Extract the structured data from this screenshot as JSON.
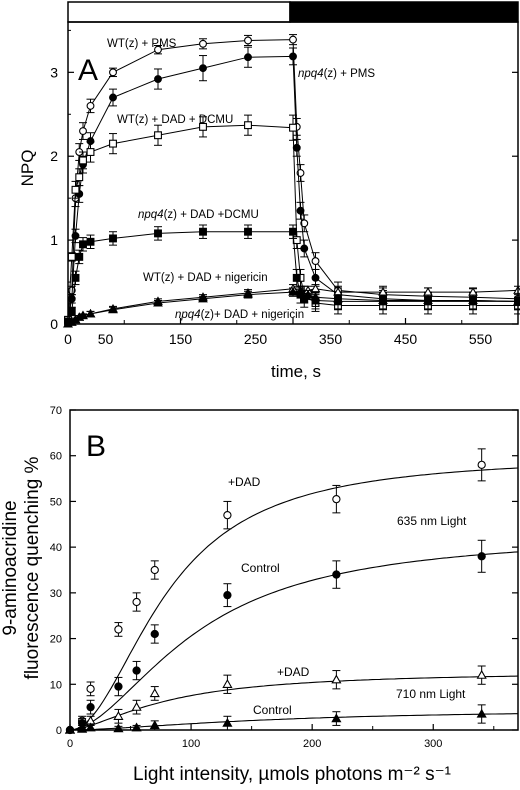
{
  "chart_data": [
    {
      "panel_label": "A",
      "type": "line",
      "xlabel": "time, s",
      "ylabel": "NPQ",
      "xlim": [
        0,
        600
      ],
      "ylim": [
        0,
        3.6
      ],
      "xticks": [
        0,
        150,
        300,
        450
      ],
      "xticks_minor": [
        75,
        225,
        375,
        525
      ],
      "xtick_labels": [
        "0",
        "50",
        "150",
        "250",
        "350",
        "450",
        "550"
      ],
      "xtick_label_values": [
        0,
        50,
        150,
        250,
        350,
        450,
        550
      ],
      "yticks": [
        0,
        1,
        2,
        3
      ],
      "light_bar": {
        "light_until": 300,
        "dark_from": 300
      },
      "series": [
        {
          "name": "WT(z) + PMS",
          "marker": "circle-open",
          "x": [
            0,
            5,
            10,
            15,
            20,
            30,
            60,
            120,
            180,
            240,
            300,
            305,
            310,
            315,
            330,
            360,
            420,
            480,
            540,
            600
          ],
          "y": [
            0.05,
            0.4,
            1.5,
            2.05,
            2.3,
            2.6,
            3.0,
            3.27,
            3.34,
            3.38,
            3.39,
            2.35,
            1.8,
            1.2,
            0.75,
            0.4,
            0.35,
            0.33,
            0.32,
            0.3
          ],
          "err": [
            0.02,
            0.05,
            0.1,
            0.1,
            0.1,
            0.08,
            0.05,
            0.05,
            0.06,
            0.06,
            0.06,
            0.1,
            0.1,
            0.1,
            0.1,
            0.1,
            0.1,
            0.1,
            0.1,
            0.1
          ]
        },
        {
          "name": "npq4(z) + PMS",
          "marker": "circle-filled",
          "x": [
            0,
            5,
            10,
            15,
            20,
            30,
            60,
            120,
            180,
            240,
            300,
            305,
            310,
            315,
            330,
            360,
            420,
            480,
            540,
            600
          ],
          "y": [
            0.05,
            0.3,
            1.05,
            1.55,
            1.9,
            2.18,
            2.7,
            2.92,
            3.05,
            3.18,
            3.19,
            2.1,
            1.35,
            0.9,
            0.55,
            0.35,
            0.3,
            0.28,
            0.28,
            0.27
          ],
          "err": [
            0.02,
            0.05,
            0.08,
            0.1,
            0.1,
            0.1,
            0.1,
            0.12,
            0.15,
            0.12,
            0.1,
            0.1,
            0.1,
            0.1,
            0.1,
            0.1,
            0.1,
            0.1,
            0.1,
            0.1
          ]
        },
        {
          "name": "WT(z) + DAD + DCMU",
          "marker": "square-open",
          "x": [
            0,
            5,
            10,
            15,
            20,
            30,
            60,
            120,
            180,
            240,
            300,
            305,
            310,
            315,
            330,
            360,
            420,
            480,
            540,
            600
          ],
          "y": [
            0.05,
            0.8,
            1.6,
            1.75,
            1.95,
            2.05,
            2.15,
            2.25,
            2.35,
            2.37,
            2.34,
            1.0,
            0.55,
            0.35,
            0.25,
            0.22,
            0.22,
            0.22,
            0.22,
            0.22
          ],
          "err": [
            0.02,
            0.05,
            0.1,
            0.1,
            0.1,
            0.12,
            0.12,
            0.12,
            0.12,
            0.12,
            0.15,
            0.1,
            0.1,
            0.1,
            0.1,
            0.1,
            0.1,
            0.1,
            0.1,
            0.1
          ]
        },
        {
          "name": "npq4(z) + DAD +DCMU",
          "marker": "square-filled",
          "x": [
            0,
            5,
            10,
            15,
            20,
            30,
            60,
            120,
            180,
            240,
            300,
            305,
            310,
            315,
            330,
            360,
            420,
            480,
            540,
            600
          ],
          "y": [
            0.03,
            0.15,
            0.55,
            0.8,
            0.95,
            0.98,
            1.02,
            1.08,
            1.1,
            1.1,
            1.1,
            0.55,
            0.35,
            0.3,
            0.28,
            0.27,
            0.27,
            0.27,
            0.27,
            0.27
          ],
          "err": [
            0.02,
            0.05,
            0.08,
            0.08,
            0.08,
            0.08,
            0.08,
            0.08,
            0.08,
            0.08,
            0.08,
            0.1,
            0.1,
            0.1,
            0.1,
            0.1,
            0.1,
            0.1,
            0.1,
            0.1
          ]
        },
        {
          "name": "WT(z) + DAD + nigericin",
          "marker": "triangle-open",
          "x": [
            0,
            5,
            10,
            15,
            20,
            30,
            60,
            120,
            180,
            240,
            300,
            310,
            320,
            330,
            360,
            420,
            480,
            540,
            600
          ],
          "y": [
            0.0,
            0.02,
            0.05,
            0.08,
            0.1,
            0.12,
            0.18,
            0.27,
            0.32,
            0.37,
            0.42,
            0.4,
            0.4,
            0.42,
            0.38,
            0.38,
            0.38,
            0.38,
            0.4
          ],
          "err": [
            0.01,
            0.02,
            0.02,
            0.02,
            0.02,
            0.03,
            0.03,
            0.03,
            0.03,
            0.04,
            0.05,
            0.05,
            0.05,
            0.05,
            0.05,
            0.05,
            0.05,
            0.05,
            0.05
          ]
        },
        {
          "name": "npq4(z)+ DAD + nigericin",
          "marker": "triangle-filled",
          "x": [
            0,
            5,
            10,
            15,
            20,
            30,
            60,
            120,
            180,
            240,
            300,
            310,
            320,
            330,
            360,
            420,
            480,
            540,
            600
          ],
          "y": [
            0.0,
            0.02,
            0.05,
            0.08,
            0.1,
            0.12,
            0.17,
            0.25,
            0.3,
            0.35,
            0.38,
            0.38,
            0.35,
            0.32,
            0.3,
            0.28,
            0.28,
            0.28,
            0.27
          ],
          "err": [
            0.01,
            0.02,
            0.02,
            0.02,
            0.02,
            0.03,
            0.03,
            0.03,
            0.03,
            0.04,
            0.05,
            0.05,
            0.05,
            0.05,
            0.05,
            0.05,
            0.05,
            0.05,
            0.05
          ]
        }
      ],
      "annotations": [
        {
          "parts": [
            "WT(z) + PMS"
          ],
          "italic": [
            false
          ]
        },
        {
          "parts": [
            "npq4",
            "(z) + PMS"
          ],
          "italic": [
            true,
            false
          ]
        },
        {
          "parts": [
            "WT(z) + DAD + DCMU"
          ],
          "italic": [
            false
          ]
        },
        {
          "parts": [
            "npq4",
            "(z) + DAD +DCMU"
          ],
          "italic": [
            true,
            false
          ]
        },
        {
          "parts": [
            "WT(z) + DAD + nigericin"
          ],
          "italic": [
            false
          ]
        },
        {
          "parts": [
            "npq4",
            "(z)+ DAD + nigericin"
          ],
          "italic": [
            true,
            false
          ]
        }
      ]
    },
    {
      "panel_label": "B",
      "type": "scatter",
      "xlabel": "Light intensity, µmols photons m⁻² s⁻¹",
      "ylabel_line1": "9-aminoacridine",
      "ylabel_line2": "fluorescence quenching %",
      "xlim": [
        0,
        370
      ],
      "ylim": [
        0,
        70
      ],
      "xticks": [
        0,
        100,
        200,
        300
      ],
      "xticks_minor": [
        50,
        150,
        250,
        350
      ],
      "yticks": [
        0,
        10,
        20,
        30,
        40,
        50,
        60,
        70
      ],
      "series": [
        {
          "name": "+DAD",
          "group": "635 nm Light",
          "marker": "circle-open",
          "x": [
            0,
            10,
            17,
            40,
            55,
            70,
            130,
            220,
            340
          ],
          "y": [
            0,
            2,
            9,
            22,
            28,
            35,
            47,
            50.5,
            58
          ],
          "err": [
            0,
            1,
            1.5,
            1.5,
            2,
            2,
            3,
            3,
            3.5
          ],
          "fit": {
            "ymax": 60,
            "k": 80,
            "n": 2
          }
        },
        {
          "name": "Control",
          "group": "635 nm Light",
          "marker": "circle-filled",
          "x": [
            0,
            10,
            17,
            40,
            55,
            70,
            130,
            220,
            340
          ],
          "y": [
            0,
            1.5,
            5,
            9.5,
            13,
            21,
            29.5,
            34,
            38
          ],
          "err": [
            0,
            1,
            1.5,
            2,
            2,
            2,
            2.5,
            3,
            3.5
          ],
          "fit": {
            "ymax": 43,
            "k": 105,
            "n": 1.8
          }
        },
        {
          "name": "+DAD",
          "group": "710 nm Light",
          "marker": "triangle-open",
          "x": [
            0,
            10,
            17,
            40,
            55,
            70,
            130,
            220,
            340
          ],
          "y": [
            0,
            0.5,
            2,
            3,
            5,
            8,
            10,
            11,
            12
          ],
          "err": [
            0,
            0.5,
            1,
            1.5,
            1.5,
            1.5,
            2,
            2,
            2
          ],
          "fit": {
            "ymax": 12.8,
            "k": 80,
            "n": 1.6
          }
        },
        {
          "name": "Control",
          "group": "710 nm Light",
          "marker": "triangle-filled",
          "x": [
            0,
            10,
            17,
            40,
            55,
            70,
            130,
            220,
            340
          ],
          "y": [
            0,
            0.2,
            0.5,
            0.3,
            0.5,
            1,
            1.5,
            2.5,
            3.5
          ],
          "err": [
            0,
            0.3,
            0.5,
            0.5,
            0.5,
            1,
            1.5,
            1.5,
            2
          ],
          "fit": {
            "ymax": 4.6,
            "k": 170,
            "n": 1.6
          }
        }
      ],
      "annotations": [
        "+DAD",
        "635 nm Light",
        "Control",
        "+DAD",
        "710 nm Light",
        "Control"
      ]
    }
  ]
}
